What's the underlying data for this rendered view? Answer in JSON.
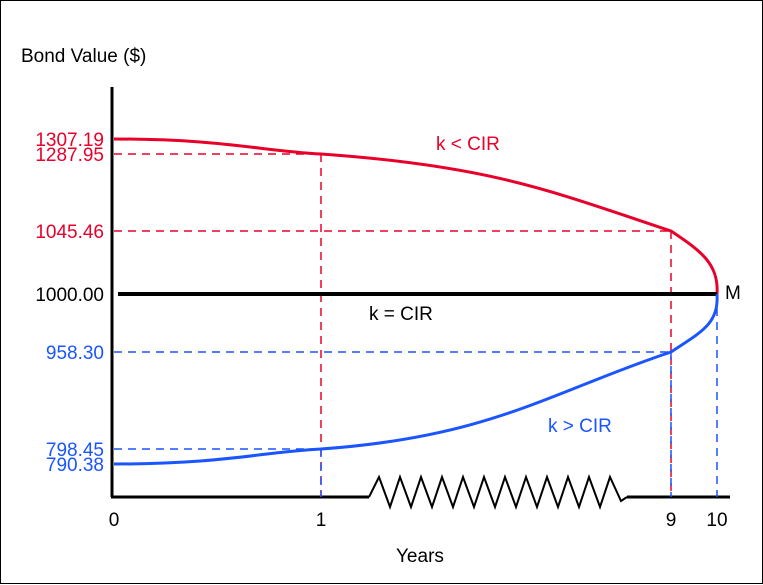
{
  "chart_data": {
    "type": "line",
    "ylabel": "Bond Value ($)",
    "xlabel": "Years",
    "x_ticks": [
      "0",
      "1",
      "9",
      "10"
    ],
    "maturity_label": "M",
    "axis_break": true,
    "y_ticks": [
      {
        "label": "1307.19",
        "value": 1307.19,
        "color": "#e8002a"
      },
      {
        "label": "1287.95",
        "value": 1287.95,
        "color": "#e8002a"
      },
      {
        "label": "1045.46",
        "value": 1045.46,
        "color": "#e8002a"
      },
      {
        "label": "1000.00",
        "value": 1000.0,
        "color": "#000000"
      },
      {
        "label": "958.30",
        "value": 958.3,
        "color": "#1a55ff"
      },
      {
        "label": "798.45",
        "value": 798.45,
        "color": "#1a55ff"
      },
      {
        "label": "790.38",
        "value": 790.38,
        "color": "#1a55ff"
      }
    ],
    "series": [
      {
        "name": "k < CIR",
        "color": "#e8002a",
        "points": [
          [
            0,
            1307.19
          ],
          [
            1,
            1287.95
          ],
          [
            9,
            1045.46
          ],
          [
            10,
            1000.0
          ]
        ]
      },
      {
        "name": "k = CIR",
        "color": "#000000",
        "points": [
          [
            0,
            1000.0
          ],
          [
            10,
            1000.0
          ]
        ]
      },
      {
        "name": "k > CIR",
        "color": "#1a55ff",
        "points": [
          [
            0,
            790.38
          ],
          [
            1,
            798.45
          ],
          [
            9,
            958.3
          ],
          [
            10,
            1000.0
          ]
        ]
      }
    ],
    "colors": {
      "premium": "#e8002a",
      "discount": "#1a55ff",
      "par": "#000000"
    }
  }
}
